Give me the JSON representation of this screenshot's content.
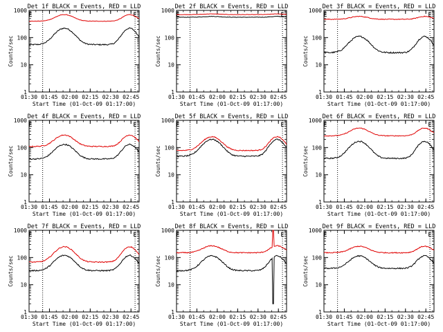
{
  "figure": {
    "colors": {
      "events": "#000000",
      "lld": "#e00000",
      "axes": "#000000"
    }
  },
  "chart_data": [
    {
      "type": "line",
      "title": "Det 1f BLACK = Events, RED = LLD",
      "xlabel": "Start Time (01-Oct-09 01:17:00)",
      "ylabel": "Counts/sec",
      "yscale": "log",
      "ylim": [
        1,
        1000
      ],
      "xlim_minutes": [
        13,
        94
      ],
      "xticks_minutes": [
        30,
        45,
        60,
        75,
        90,
        105
      ],
      "xtick_labels": [
        "01:30",
        "01:45",
        "02:00",
        "02:15",
        "02:30",
        "02:45"
      ],
      "ytick_labels": [
        "1",
        "10",
        "100",
        "1000"
      ],
      "vlines_minutes": [
        23,
        91
      ],
      "markers": [
        {
          "label": "E",
          "x_minutes": 14
        },
        {
          "label": "E",
          "x_minutes": 91
        }
      ],
      "series": [
        {
          "name": "BLACK = Events",
          "key": "events",
          "color": "#000000",
          "base": 55,
          "peak": 220,
          "noise": 0.05
        },
        {
          "name": "RED = LLD",
          "key": "lld",
          "color": "#e00000",
          "base": 400,
          "peak": 700,
          "noise": 0.02
        }
      ]
    },
    {
      "type": "line",
      "title": "Det 2f BLACK = Events, RED = LLD",
      "xlabel": "Start Time (01-Oct-09 01:17:00)",
      "ylabel": "Counts/sec",
      "yscale": "log",
      "ylim": [
        1,
        1000
      ],
      "xlim_minutes": [
        13,
        94
      ],
      "xticks_minutes": [
        30,
        45,
        60,
        75,
        90,
        105
      ],
      "xtick_labels": [
        "01:30",
        "01:45",
        "02:00",
        "02:15",
        "02:30",
        "02:45"
      ],
      "ytick_labels": [
        "1",
        "10",
        "100",
        "1000"
      ],
      "vlines_minutes": [
        23,
        91
      ],
      "markers": [
        {
          "label": "E",
          "x_minutes": 14
        },
        {
          "label": "E",
          "x_minutes": 91
        }
      ],
      "series": [
        {
          "name": "BLACK = Events",
          "key": "events",
          "color": "#000000",
          "base": 560,
          "peak": 600,
          "noise": 0.02
        },
        {
          "name": "RED = LLD",
          "key": "lld",
          "color": "#e00000",
          "base": 700,
          "peak": 740,
          "noise": 0.015
        }
      ]
    },
    {
      "type": "line",
      "title": "Det 3f BLACK = Events, RED = LLD",
      "xlabel": "Start Time (01-Oct-09 01:17:00)",
      "ylabel": "Counts/sec",
      "yscale": "log",
      "ylim": [
        1,
        1000
      ],
      "xlim_minutes": [
        13,
        94
      ],
      "xticks_minutes": [
        30,
        45,
        60,
        75,
        90,
        105
      ],
      "xtick_labels": [
        "01:30",
        "01:45",
        "02:00",
        "02:15",
        "02:30",
        "02:45"
      ],
      "ytick_labels": [
        "1",
        "10",
        "100",
        "1000"
      ],
      "vlines_minutes": [
        23,
        91
      ],
      "markers": [
        {
          "label": "E",
          "x_minutes": 14
        },
        {
          "label": "E",
          "x_minutes": 91
        }
      ],
      "series": [
        {
          "name": "BLACK = Events",
          "key": "events",
          "color": "#000000",
          "base": 28,
          "peak": 110,
          "noise": 0.06
        },
        {
          "name": "RED = LLD",
          "key": "lld",
          "color": "#e00000",
          "base": 470,
          "peak": 600,
          "noise": 0.03
        }
      ]
    },
    {
      "type": "line",
      "title": "Det 4f BLACK = Events, RED = LLD",
      "xlabel": "Start Time (01-Oct-09 01:17:00)",
      "ylabel": "Counts/sec",
      "yscale": "log",
      "ylim": [
        1,
        1000
      ],
      "xlim_minutes": [
        13,
        94
      ],
      "xticks_minutes": [
        30,
        45,
        60,
        75,
        90,
        105
      ],
      "xtick_labels": [
        "01:30",
        "01:45",
        "02:00",
        "02:15",
        "02:30",
        "02:45"
      ],
      "ytick_labels": [
        "1",
        "10",
        "100",
        "1000"
      ],
      "vlines_minutes": [
        23,
        91
      ],
      "markers": [
        {
          "label": "E",
          "x_minutes": 14
        },
        {
          "label": "E",
          "x_minutes": 91
        }
      ],
      "series": [
        {
          "name": "BLACK = Events",
          "key": "events",
          "color": "#000000",
          "base": 38,
          "peak": 130,
          "noise": 0.05
        },
        {
          "name": "RED = LLD",
          "key": "lld",
          "color": "#e00000",
          "base": 110,
          "peak": 290,
          "noise": 0.04
        }
      ]
    },
    {
      "type": "line",
      "title": "Det 5f BLACK = Events, RED = LLD",
      "xlabel": "Start Time (01-Oct-09 01:17:00)",
      "ylabel": "Counts/sec",
      "yscale": "log",
      "ylim": [
        1,
        1000
      ],
      "xlim_minutes": [
        13,
        94
      ],
      "xticks_minutes": [
        30,
        45,
        60,
        75,
        90,
        105
      ],
      "xtick_labels": [
        "01:30",
        "01:45",
        "02:00",
        "02:15",
        "02:30",
        "02:45"
      ],
      "ytick_labels": [
        "1",
        "10",
        "100",
        "1000"
      ],
      "vlines_minutes": [
        23,
        91
      ],
      "markers": [
        {
          "label": "E",
          "x_minutes": 14
        },
        {
          "label": "E",
          "x_minutes": 91
        }
      ],
      "series": [
        {
          "name": "BLACK = Events",
          "key": "events",
          "color": "#000000",
          "base": 48,
          "peak": 200,
          "noise": 0.05
        },
        {
          "name": "RED = LLD",
          "key": "lld",
          "color": "#e00000",
          "base": 78,
          "peak": 250,
          "noise": 0.04
        }
      ]
    },
    {
      "type": "line",
      "title": "Det 6f BLACK = Events, RED = LLD",
      "xlabel": "Start Time (01-Oct-09 01:17:00)",
      "ylabel": "Counts/sec",
      "yscale": "log",
      "ylim": [
        1,
        1000
      ],
      "xlim_minutes": [
        13,
        94
      ],
      "xticks_minutes": [
        30,
        45,
        60,
        75,
        90,
        105
      ],
      "xtick_labels": [
        "01:30",
        "01:45",
        "02:00",
        "02:15",
        "02:30",
        "02:45"
      ],
      "ytick_labels": [
        "1",
        "10",
        "100",
        "1000"
      ],
      "vlines_minutes": [
        23,
        91
      ],
      "markers": [
        {
          "label": "E",
          "x_minutes": 14
        },
        {
          "label": "E",
          "x_minutes": 91
        }
      ],
      "series": [
        {
          "name": "BLACK = Events",
          "key": "events",
          "color": "#000000",
          "base": 40,
          "peak": 170,
          "noise": 0.05
        },
        {
          "name": "RED = LLD",
          "key": "lld",
          "color": "#e00000",
          "base": 270,
          "peak": 520,
          "noise": 0.03
        }
      ]
    },
    {
      "type": "line",
      "title": "Det 7f BLACK = Events, RED = LLD",
      "xlabel": "Start Time (01-Oct-09 01:17:00)",
      "ylabel": "Counts/sec",
      "yscale": "log",
      "ylim": [
        1,
        1000
      ],
      "xlim_minutes": [
        13,
        94
      ],
      "xticks_minutes": [
        30,
        45,
        60,
        75,
        90,
        105
      ],
      "xtick_labels": [
        "01:30",
        "01:45",
        "02:00",
        "02:15",
        "02:30",
        "02:45"
      ],
      "ytick_labels": [
        "1",
        "10",
        "100",
        "1000"
      ],
      "vlines_minutes": [
        23,
        91
      ],
      "markers": [
        {
          "label": "E",
          "x_minutes": 14
        },
        {
          "label": "E",
          "x_minutes": 91
        }
      ],
      "series": [
        {
          "name": "BLACK = Events",
          "key": "events",
          "color": "#000000",
          "base": 33,
          "peak": 120,
          "noise": 0.05
        },
        {
          "name": "RED = LLD",
          "key": "lld",
          "color": "#e00000",
          "base": 68,
          "peak": 250,
          "noise": 0.04
        }
      ]
    },
    {
      "type": "line",
      "title": "Det 8f BLACK = Events, RED = LLD",
      "xlabel": "Start Time (01-Oct-09 01:17:00)",
      "ylabel": "Counts/sec",
      "yscale": "log",
      "ylim": [
        1,
        1000
      ],
      "xlim_minutes": [
        13,
        94
      ],
      "xticks_minutes": [
        30,
        45,
        60,
        75,
        90,
        105
      ],
      "xtick_labels": [
        "01:30",
        "01:45",
        "02:00",
        "02:15",
        "02:30",
        "02:45"
      ],
      "ytick_labels": [
        "1",
        "10",
        "100",
        "1000"
      ],
      "vlines_minutes": [
        23,
        91
      ],
      "markers": [
        {
          "label": "E",
          "x_minutes": 14
        },
        {
          "label": "E",
          "x_minutes": 91
        }
      ],
      "series": [
        {
          "name": "BLACK = Events",
          "key": "events",
          "color": "#000000",
          "base": 33,
          "peak": 115,
          "noise": 0.05,
          "spike": {
            "x_minutes": 84,
            "value": 2
          }
        },
        {
          "name": "RED = LLD",
          "key": "lld",
          "color": "#e00000",
          "base": 150,
          "peak": 270,
          "noise": 0.04,
          "spike": {
            "x_minutes": 84,
            "value": 1000
          }
        }
      ]
    },
    {
      "type": "line",
      "title": "Det 9f BLACK = Events, RED = LLD",
      "xlabel": "Start Time (01-Oct-09 01:17:00)",
      "ylabel": "Counts/sec",
      "yscale": "log",
      "ylim": [
        1,
        1000
      ],
      "xlim_minutes": [
        13,
        94
      ],
      "xticks_minutes": [
        30,
        45,
        60,
        75,
        90,
        105
      ],
      "xtick_labels": [
        "01:30",
        "01:45",
        "02:00",
        "02:15",
        "02:30",
        "02:45"
      ],
      "ytick_labels": [
        "1",
        "10",
        "100",
        "1000"
      ],
      "vlines_minutes": [
        23,
        91
      ],
      "markers": [
        {
          "label": "E",
          "x_minutes": 14
        },
        {
          "label": "E",
          "x_minutes": 91
        }
      ],
      "series": [
        {
          "name": "BLACK = Events",
          "key": "events",
          "color": "#000000",
          "base": 40,
          "peak": 115,
          "noise": 0.05
        },
        {
          "name": "RED = LLD",
          "key": "lld",
          "color": "#e00000",
          "base": 150,
          "peak": 260,
          "noise": 0.04
        }
      ]
    }
  ]
}
